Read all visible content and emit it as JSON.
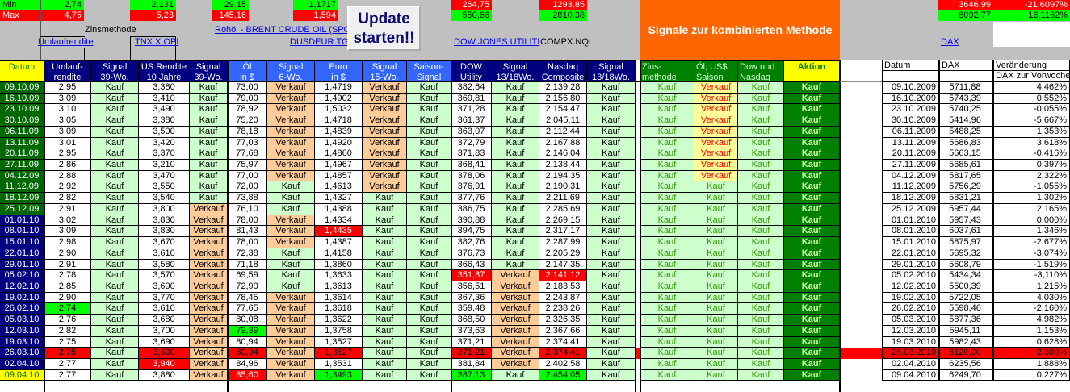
{
  "top": {
    "min_label": "Min",
    "max_label": "Max",
    "umlauf_min": "2,74",
    "umlauf_max": "4,75",
    "us10_min": "2,131",
    "us10_max": "5,23",
    "oel_min": "29,15",
    "oel_max": "145,16",
    "euro_min": "1,1717",
    "euro_max": "1,594",
    "dow_min": "264,75",
    "dow_max": "550,66",
    "nasdaq_min": "1293,85",
    "nasdaq_max": "2810,38",
    "dax_min": "3646,99",
    "dax_min_pct": "-21,6097%",
    "dax_max": "8092,77",
    "dax_max_pct": "16,1162%",
    "zinsmethode": "Zinsmethode",
    "links": {
      "umlaufrendite": "Umlaufrendite",
      "tnx": "TNX.X.OPI",
      "rohoel": "Rohöl - BRENT CRUDE OIL (SPOT)",
      "dusdeur": "DUSDEUR.TGT",
      "dowjones": "DOW JONES UTILITIES",
      "compx": "COMPX.NQI",
      "dax": "DAX"
    },
    "update_button": [
      "Update",
      "starten!!"
    ],
    "banner": "Signale zur kombinierten Methode"
  },
  "colors": {
    "kauf": "#ccffcc",
    "verkauf": "#ffcc99",
    "aktion": "#008000",
    "alert": "#ff0000",
    "min_green": "#00ff00"
  },
  "table": {
    "headers": [
      [
        "Datum",
        ""
      ],
      [
        "Umlauf-",
        "rendite"
      ],
      [
        "Signal",
        "39-Wo."
      ],
      [
        "US Rendite",
        "10 Jahre"
      ],
      [
        "Signal",
        "39-Wo."
      ],
      [
        "Öl",
        "in $"
      ],
      [
        "Signal",
        "6-Wo."
      ],
      [
        "Euro",
        "in $"
      ],
      [
        "Signal",
        "15-Wo."
      ],
      [
        "Saison-",
        "Signal"
      ],
      [
        "DOW",
        "Utility"
      ],
      [
        "Signal",
        "13/18Wo."
      ],
      [
        "Nasdaq",
        "Composite"
      ],
      [
        "Signal",
        "13/18Wo."
      ],
      [
        "Zins-",
        "methode"
      ],
      [
        "Öl, US$",
        "Saison"
      ],
      [
        "Dow und",
        "Nasdaq"
      ],
      [
        "Aktion",
        ""
      ]
    ],
    "rows": [
      {
        "cells": [
          "09.10.09",
          "2,95",
          "Kauf",
          "3,380",
          "Kauf",
          "73,00",
          "Verkauf",
          "1,4719",
          "Verkauf",
          "Kauf",
          "382,64",
          "Kauf",
          "2.139,28",
          "Kauf",
          "Kauf",
          "Verkauf",
          "Kauf",
          "Kauf"
        ],
        "marks": {}
      },
      {
        "cells": [
          "16.10.09",
          "3,09",
          "Kauf",
          "3,410",
          "Kauf",
          "79,00",
          "Verkauf",
          "1,4902",
          "Verkauf",
          "Kauf",
          "369,81",
          "Kauf",
          "2.156,80",
          "Kauf",
          "Kauf",
          "Verkauf",
          "Kauf",
          "Kauf"
        ],
        "marks": {}
      },
      {
        "cells": [
          "23.10.09",
          "3,10",
          "Kauf",
          "3,490",
          "Kauf",
          "78,92",
          "Verkauf",
          "1,5032",
          "Verkauf",
          "Kauf",
          "371,28",
          "Kauf",
          "2.154,47",
          "Kauf",
          "Kauf",
          "Verkauf",
          "Kauf",
          "Kauf"
        ],
        "marks": {}
      },
      {
        "cells": [
          "30.10.09",
          "3,05",
          "Kauf",
          "3,380",
          "Kauf",
          "75,20",
          "Verkauf",
          "1,4718",
          "Verkauf",
          "Kauf",
          "361,37",
          "Kauf",
          "2.045,11",
          "Kauf",
          "Kauf",
          "Verkauf",
          "Kauf",
          "Kauf"
        ],
        "marks": {}
      },
      {
        "cells": [
          "06.11.09",
          "3,09",
          "Kauf",
          "3,500",
          "Kauf",
          "78,18",
          "Verkauf",
          "1,4839",
          "Verkauf",
          "Kauf",
          "363,07",
          "Kauf",
          "2.112,44",
          "Kauf",
          "Kauf",
          "Verkauf",
          "Kauf",
          "Kauf"
        ],
        "marks": {}
      },
      {
        "cells": [
          "13.11.09",
          "3,01",
          "Kauf",
          "3,420",
          "Kauf",
          "77,03",
          "Verkauf",
          "1,4920",
          "Verkauf",
          "Kauf",
          "372,79",
          "Kauf",
          "2.167,88",
          "Kauf",
          "Kauf",
          "Verkauf",
          "Kauf",
          "Kauf"
        ],
        "marks": {}
      },
      {
        "cells": [
          "20.11.09",
          "2,95",
          "Kauf",
          "3,370",
          "Kauf",
          "77,68",
          "Verkauf",
          "1,4860",
          "Verkauf",
          "Kauf",
          "371,83",
          "Kauf",
          "2.146,04",
          "Kauf",
          "Kauf",
          "Verkauf",
          "Kauf",
          "Kauf"
        ],
        "marks": {}
      },
      {
        "cells": [
          "27.11.09",
          "2,86",
          "Kauf",
          "3,210",
          "Kauf",
          "75,97",
          "Verkauf",
          "1,4967",
          "Verkauf",
          "Kauf",
          "368,41",
          "Kauf",
          "2.138,44",
          "Kauf",
          "Kauf",
          "Verkauf",
          "Kauf",
          "Kauf"
        ],
        "marks": {}
      },
      {
        "cells": [
          "04.12.09",
          "2,88",
          "Kauf",
          "3,470",
          "Kauf",
          "77,00",
          "Verkauf",
          "1,4857",
          "Verkauf",
          "Kauf",
          "378,06",
          "Kauf",
          "2.194,35",
          "Kauf",
          "Kauf",
          "Verkauf",
          "Kauf",
          "Kauf"
        ],
        "marks": {}
      },
      {
        "cells": [
          "11.12.09",
          "2,92",
          "Kauf",
          "3,550",
          "Kauf",
          "72,00",
          "Kauf",
          "1,4613",
          "Verkauf",
          "Kauf",
          "376,91",
          "Kauf",
          "2.190,31",
          "Kauf",
          "Kauf",
          "Kauf",
          "Kauf",
          "Kauf"
        ],
        "marks": {}
      },
      {
        "cells": [
          "18.12.09",
          "2,82",
          "Kauf",
          "3,540",
          "Kauf",
          "73,88",
          "Kauf",
          "1,4327",
          "Kauf",
          "Kauf",
          "377,76",
          "Kauf",
          "2.211,69",
          "Kauf",
          "Kauf",
          "Kauf",
          "Kauf",
          "Kauf"
        ],
        "marks": {}
      },
      {
        "cells": [
          "25.12.09",
          "2,91",
          "Kauf",
          "3,800",
          "Verkauf",
          "76,10",
          "Kauf",
          "1,4388",
          "Kauf",
          "Kauf",
          "386,75",
          "Kauf",
          "2.285,69",
          "Kauf",
          "Kauf",
          "Kauf",
          "Kauf",
          "Kauf"
        ],
        "marks": {}
      },
      {
        "cells": [
          "01.01.10",
          "3,02",
          "Kauf",
          "3,830",
          "Verkauf",
          "78,00",
          "Verkauf",
          "1,4334",
          "Kauf",
          "Kauf",
          "390,88",
          "Kauf",
          "2.269,15",
          "Kauf",
          "Kauf",
          "Kauf",
          "Kauf",
          "Kauf"
        ],
        "marks": {}
      },
      {
        "cells": [
          "08.01.10",
          "3,09",
          "Kauf",
          "3,830",
          "Verkauf",
          "81,43",
          "Verkauf",
          "1,4435",
          "Kauf",
          "Kauf",
          "394,75",
          "Kauf",
          "2.317,17",
          "Kauf",
          "Kauf",
          "Kauf",
          "Kauf",
          "Kauf"
        ],
        "marks": {
          "7": "red"
        }
      },
      {
        "cells": [
          "15.01.10",
          "2,98",
          "Kauf",
          "3,670",
          "Verkauf",
          "78,00",
          "Verkauf",
          "1,4387",
          "Kauf",
          "Kauf",
          "382,76",
          "Kauf",
          "2.287,99",
          "Kauf",
          "Kauf",
          "Kauf",
          "Kauf",
          "Kauf"
        ],
        "marks": {}
      },
      {
        "cells": [
          "22.01.10",
          "2,90",
          "Kauf",
          "3,610",
          "Verkauf",
          "72,38",
          "Kauf",
          "1,4158",
          "Kauf",
          "Kauf",
          "376,73",
          "Kauf",
          "2.205,29",
          "Kauf",
          "Kauf",
          "Kauf",
          "Kauf",
          "Kauf"
        ],
        "marks": {}
      },
      {
        "cells": [
          "29.01.10",
          "2,91",
          "Kauf",
          "3,580",
          "Verkauf",
          "71,18",
          "Kauf",
          "1,3860",
          "Kauf",
          "Kauf",
          "366,43",
          "Kauf",
          "2.147,35",
          "Kauf",
          "Kauf",
          "Kauf",
          "Kauf",
          "Kauf"
        ],
        "marks": {}
      },
      {
        "cells": [
          "05.02.10",
          "2,78",
          "Kauf",
          "3,570",
          "Verkauf",
          "69,59",
          "Kauf",
          "1,3633",
          "Kauf",
          "Kauf",
          "351,87",
          "Verkauf",
          "2.141,12",
          "Kauf",
          "Kauf",
          "Kauf",
          "Kauf",
          "Kauf"
        ],
        "marks": {
          "10": "red",
          "12": "red"
        }
      },
      {
        "cells": [
          "12.02.10",
          "2,85",
          "Kauf",
          "3,690",
          "Verkauf",
          "72,90",
          "Kauf",
          "1,3613",
          "Kauf",
          "Kauf",
          "356,51",
          "Verkauf",
          "2.183,53",
          "Kauf",
          "Kauf",
          "Kauf",
          "Kauf",
          "Kauf"
        ],
        "marks": {}
      },
      {
        "cells": [
          "19.02.10",
          "2,90",
          "Kauf",
          "3,770",
          "Verkauf",
          "78,45",
          "Verkauf",
          "1,3614",
          "Kauf",
          "Kauf",
          "367,36",
          "Verkauf",
          "2.243,87",
          "Kauf",
          "Kauf",
          "Kauf",
          "Kauf",
          "Kauf"
        ],
        "marks": {}
      },
      {
        "cells": [
          "26.02.10",
          "2,74",
          "Kauf",
          "3,610",
          "Verkauf",
          "77,65",
          "Verkauf",
          "1,3618",
          "Kauf",
          "Kauf",
          "359,48",
          "Verkauf",
          "2.238,26",
          "Kauf",
          "Kauf",
          "Kauf",
          "Kauf",
          "Kauf"
        ],
        "marks": {
          "1": "green"
        }
      },
      {
        "cells": [
          "05.03.10",
          "2,76",
          "Kauf",
          "3,680",
          "Verkauf",
          "80,08",
          "Verkauf",
          "1,3622",
          "Kauf",
          "Kauf",
          "368,50",
          "Verkauf",
          "2.326,35",
          "Kauf",
          "Kauf",
          "Kauf",
          "Kauf",
          "Kauf"
        ],
        "marks": {}
      },
      {
        "cells": [
          "12.03.10",
          "2,82",
          "Kauf",
          "3,700",
          "Verkauf",
          "79,39",
          "Verkauf",
          "1,3758",
          "Kauf",
          "Kauf",
          "373,63",
          "Verkauf",
          "2.367,66",
          "Kauf",
          "Kauf",
          "Kauf",
          "Kauf",
          "Kauf"
        ],
        "marks": {
          "5": "green"
        }
      },
      {
        "cells": [
          "19.03.10",
          "2,75",
          "Kauf",
          "3,690",
          "Verkauf",
          "80,94",
          "Verkauf",
          "1,3527",
          "Kauf",
          "Kauf",
          "371,21",
          "Verkauf",
          "2.374,41",
          "Kauf",
          "Kauf",
          "Kauf",
          "Kauf",
          "Kauf"
        ],
        "marks": {}
      },
      {
        "cells": [
          "26.03.10",
          "2,75",
          "Kauf",
          "3,690",
          "Verkauf",
          "80,94",
          "Verkauf",
          "1,3527",
          "Kauf",
          "Kauf",
          "371,21",
          "Verkauf",
          "2.374,41",
          "Kauf",
          "Kauf",
          "Kauf",
          "Kauf",
          "Kauf"
        ],
        "marks": {
          "1": "alert",
          "3": "alert",
          "5": "alert",
          "7": "alert",
          "10": "alert",
          "12": "alert"
        },
        "alert_row": true
      },
      {
        "cells": [
          "02.04.10",
          "2,77",
          "Kauf",
          "3,940",
          "Verkauf",
          "84,96",
          "Verkauf",
          "1,3531",
          "Kauf",
          "Kauf",
          "381,84",
          "Verkauf",
          "2.402,58",
          "Kauf",
          "Kauf",
          "Kauf",
          "Kauf",
          "Kauf"
        ],
        "marks": {
          "3": "red"
        }
      },
      {
        "cells": [
          "09.04.10",
          "2,77",
          "Kauf",
          "3,880",
          "Verkauf",
          "85,60",
          "Verkauf",
          "1,3493",
          "Kauf",
          "Kauf",
          "387,13",
          "Kauf",
          "2.454,05",
          "Kauf",
          "Kauf",
          "Kauf",
          "Kauf",
          "Kauf"
        ],
        "marks": {
          "5": "red",
          "7": "green",
          "10": "green",
          "12": "green"
        }
      }
    ]
  },
  "dax_table": {
    "headers": [
      "Datum",
      "DAX",
      "Veränderung"
    ],
    "subheader": "DAX zur Vorwoche",
    "rows": [
      [
        "09.10.2009",
        "5711,88",
        "4,462%"
      ],
      [
        "16.10.2009",
        "5743,39",
        "0,552%"
      ],
      [
        "23.10.2009",
        "5740,25",
        "-0,055%"
      ],
      [
        "30.10.2009",
        "5414,96",
        "-5,667%"
      ],
      [
        "06.11.2009",
        "5488,25",
        "1,353%"
      ],
      [
        "13.11.2009",
        "5686,83",
        "3,618%"
      ],
      [
        "20.11.2009",
        "5663,15",
        "-0,416%"
      ],
      [
        "27.11.2009",
        "5685,61",
        "0,397%"
      ],
      [
        "04.12.2009",
        "5817,65",
        "2,322%"
      ],
      [
        "11.12.2009",
        "5756,29",
        "-1,055%"
      ],
      [
        "18.12.2009",
        "5831,21",
        "1,302%"
      ],
      [
        "25.12.2009",
        "5957,44",
        "2,165%"
      ],
      [
        "01.01.2010",
        "5957,43",
        "0,000%"
      ],
      [
        "08.01.2010",
        "6037,61",
        "1,346%"
      ],
      [
        "15.01.2010",
        "5875,97",
        "-2,677%"
      ],
      [
        "22.01.2010",
        "5695,32",
        "-3,074%"
      ],
      [
        "29.01.2010",
        "5608,79",
        "-1,519%"
      ],
      [
        "05.02.2010",
        "5434,34",
        "-3,110%"
      ],
      [
        "12.02.2010",
        "5500,39",
        "1,215%"
      ],
      [
        "19.02.2010",
        "5722,05",
        "4,030%"
      ],
      [
        "26.02.2010",
        "5598,46",
        "-2,160%"
      ],
      [
        "05.03.2010",
        "5877,36",
        "4,982%"
      ],
      [
        "12.03.2010",
        "5945,11",
        "1,153%"
      ],
      [
        "19.03.2010",
        "5982,43",
        "0,628%"
      ],
      [
        "26.03.2010",
        "6120,00",
        "2,300%"
      ],
      [
        "02.04.2010",
        "6235,56",
        "1,888%"
      ],
      [
        "09.04.2010",
        "6249,70",
        "0,227%"
      ]
    ]
  }
}
